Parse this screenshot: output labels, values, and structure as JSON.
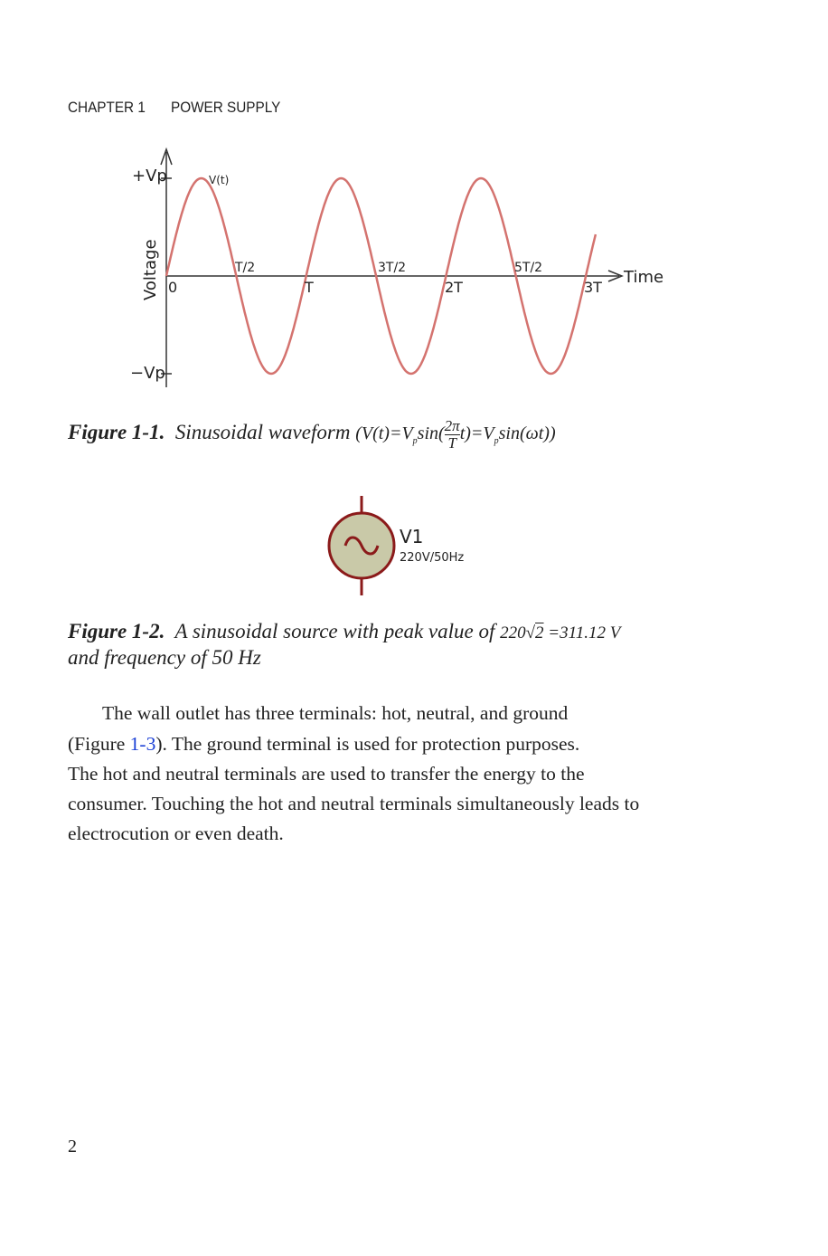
{
  "header": {
    "chapter": "CHAPTER 1",
    "title": "POWER SUPPLY"
  },
  "figure1": {
    "caption_label": "Figure 1-1.",
    "caption_text": "Sinusoidal waveform",
    "formula_left": "(V(t)=V",
    "formula_sub": "p",
    "formula_sin": "sin(",
    "formula_num": "2π",
    "formula_den": "T",
    "formula_mid": "t)=V",
    "formula_end": "sin(ωt))",
    "chart_data": {
      "type": "line",
      "series": [
        {
          "name": "V(t)",
          "function": "Vp*sin(2*pi*t/T)"
        }
      ],
      "xlabel": "Time",
      "ylabel": "Voltage",
      "x_tick_labels_below": [
        "0",
        "T",
        "2T",
        "3T"
      ],
      "x_tick_labels_above": [
        "T/2",
        "3T/2",
        "5T/2"
      ],
      "y_tick_labels": [
        "+Vp",
        "−Vp"
      ],
      "x_range_periods": [
        0,
        3.07
      ],
      "color": "#d4736f"
    }
  },
  "figure2": {
    "name": "V1",
    "value": "220V/50Hz",
    "caption_label": "Figure 1-2.",
    "caption_text": "A sinusoidal source with peak value of",
    "formula_a": "220",
    "formula_b": "2",
    "formula_c": "=311.12 V",
    "caption_line2": "and frequency of 50 Hz",
    "stroke_color": "#8b1a1a",
    "fill_color": "#c9c9a8"
  },
  "body": {
    "line1": "The wall outlet has three terminals: hot, neutral, and ground",
    "line2_a": "(Figure ",
    "line2_link": "1-3",
    "line2_b": "). The ground terminal is used for protection purposes.",
    "line3": "The hot and neutral terminals are used to transfer the energy to the",
    "line4": "consumer. Touching the hot and neutral terminals simultaneously leads to",
    "line5": "electrocution or even death."
  },
  "page_number": "2"
}
